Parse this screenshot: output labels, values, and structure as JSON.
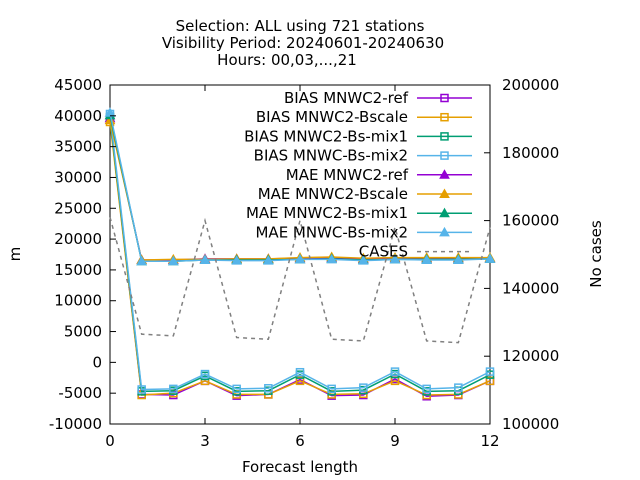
{
  "chart_data": {
    "type": "line",
    "title_lines": [
      "Selection: ALL using   721 stations",
      "Visibility   Period: 20240601-20240630",
      "Hours: 00,03,...,21"
    ],
    "xlabel": "Forecast length",
    "ylabel": "m",
    "y2label": "No cases",
    "xlim": [
      0,
      12
    ],
    "ylim": [
      -10000,
      45000
    ],
    "y2lim": [
      100000,
      200000
    ],
    "x_ticks": [
      0,
      3,
      6,
      9,
      12
    ],
    "y_ticks": [
      -10000,
      -5000,
      0,
      5000,
      10000,
      15000,
      20000,
      25000,
      30000,
      35000,
      40000,
      45000
    ],
    "y2_ticks": [
      100000,
      120000,
      140000,
      160000,
      180000,
      200000
    ],
    "legend_position": "top-right",
    "x": [
      0,
      1,
      2,
      3,
      4,
      5,
      6,
      7,
      8,
      9,
      10,
      11,
      12
    ],
    "series": [
      {
        "name": "BIAS MNWC2-ref",
        "color": "#9400d3",
        "marker": "square-open",
        "axis": "y1",
        "values": [
          39500,
          -5200,
          -5300,
          -3000,
          -5400,
          -5200,
          -2800,
          -5400,
          -5300,
          -2700,
          -5500,
          -5300,
          -3000
        ]
      },
      {
        "name": "BIAS MNWC2-Bscale",
        "color": "#e69f00",
        "marker": "square-open",
        "axis": "y1",
        "values": [
          39000,
          -5300,
          -5000,
          -3000,
          -5200,
          -5200,
          -3000,
          -5200,
          -5100,
          -3000,
          -5300,
          -5200,
          -3000
        ]
      },
      {
        "name": "BIAS MNWC2-Bs-mix1",
        "color": "#009e73",
        "marker": "square-open",
        "axis": "y1",
        "values": [
          39800,
          -4700,
          -4600,
          -2200,
          -4700,
          -4600,
          -2000,
          -4700,
          -4500,
          -1900,
          -4700,
          -4600,
          -2000
        ]
      },
      {
        "name": "BIAS MNWC-Bs-mix2",
        "color": "#56b4e9",
        "marker": "square-open",
        "axis": "y1",
        "values": [
          40300,
          -4400,
          -4300,
          -1900,
          -4300,
          -4200,
          -1600,
          -4300,
          -4100,
          -1500,
          -4300,
          -4100,
          -1500
        ]
      },
      {
        "name": "MAE MNWC2-ref",
        "color": "#9400d3",
        "marker": "triangle-filled",
        "axis": "y1",
        "values": [
          39600,
          16600,
          16600,
          16800,
          16800,
          16800,
          16900,
          17000,
          16800,
          16900,
          16900,
          16900,
          16900
        ]
      },
      {
        "name": "MAE MNWC2-Bscale",
        "color": "#e69f00",
        "marker": "triangle-filled",
        "axis": "y1",
        "values": [
          39300,
          16600,
          16700,
          16700,
          16800,
          16800,
          17000,
          17100,
          16900,
          17000,
          17000,
          17000,
          17000
        ]
      },
      {
        "name": "MAE MNWC2-Bs-mix1",
        "color": "#009e73",
        "marker": "triangle-filled",
        "axis": "y1",
        "values": [
          40100,
          16400,
          16400,
          16600,
          16600,
          16600,
          16700,
          16800,
          16600,
          16700,
          16700,
          16700,
          16800
        ]
      },
      {
        "name": "MAE MNWC-Bs-mix2",
        "color": "#56b4e9",
        "marker": "triangle-filled",
        "axis": "y1",
        "values": [
          40500,
          16400,
          16400,
          16600,
          16500,
          16500,
          16700,
          16700,
          16500,
          16700,
          16600,
          16600,
          16800
        ]
      },
      {
        "name": "CASES",
        "color": "#808080",
        "marker": "none",
        "dash": "dashed",
        "axis": "y2",
        "values": [
          161000,
          126500,
          126000,
          160000,
          125500,
          125000,
          160000,
          125000,
          124500,
          158000,
          124500,
          124000,
          158000
        ]
      }
    ]
  }
}
